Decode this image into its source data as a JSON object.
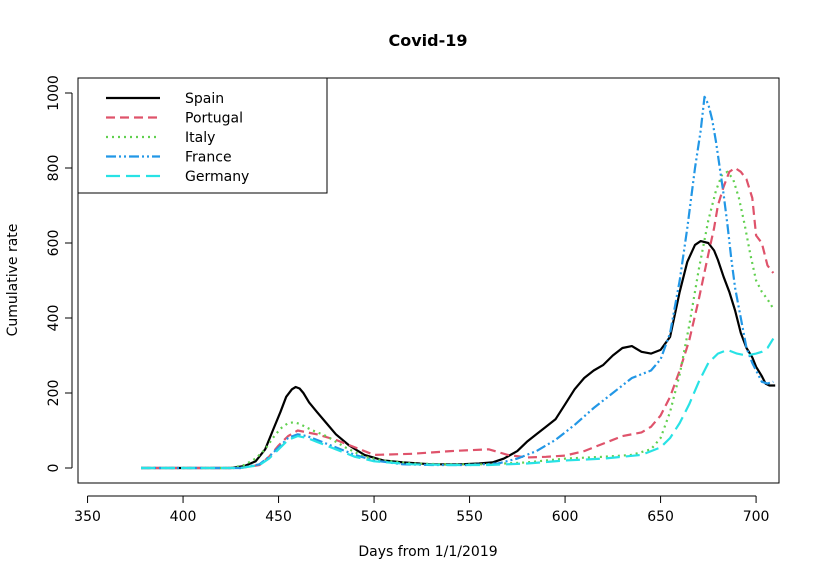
{
  "chart_data": {
    "type": "line",
    "title": "Covid-19",
    "xlabel": "Days from 1/1/2019",
    "ylabel": "Cumulative rate",
    "xlim": [
      345,
      712
    ],
    "ylim": [
      -40,
      1040
    ],
    "xticks": [
      "350",
      "400",
      "450",
      "500",
      "550",
      "600",
      "650",
      "700"
    ],
    "yticks": [
      "0",
      "200",
      "400",
      "600",
      "800",
      "1000"
    ],
    "grid": false,
    "legend_position": "top-left",
    "series": [
      {
        "name": "Spain",
        "color": "#000000",
        "dash": "",
        "width": 2.2,
        "x": [
          378,
          425,
          432,
          438,
          443,
          447,
          451,
          454,
          457,
          459,
          461,
          463,
          466,
          470,
          475,
          480,
          487,
          495,
          505,
          515,
          530,
          545,
          555,
          562,
          568,
          575,
          580,
          585,
          590,
          595,
          600,
          605,
          610,
          615,
          620,
          625,
          630,
          635,
          640,
          645,
          650,
          655,
          660,
          664,
          668,
          671,
          675,
          678,
          680,
          683,
          686,
          689,
          692,
          695,
          698,
          700,
          703,
          705,
          707,
          710
        ],
        "y": [
          0,
          0,
          5,
          18,
          50,
          100,
          150,
          190,
          210,
          216,
          212,
          200,
          175,
          150,
          120,
          90,
          60,
          35,
          20,
          15,
          10,
          10,
          12,
          15,
          25,
          45,
          70,
          90,
          110,
          130,
          170,
          210,
          240,
          260,
          275,
          300,
          320,
          325,
          310,
          305,
          315,
          350,
          470,
          550,
          595,
          605,
          600,
          580,
          555,
          510,
          470,
          420,
          360,
          320,
          295,
          270,
          245,
          225,
          220,
          220
        ]
      },
      {
        "name": "Portugal",
        "color": "#DF536B",
        "dash": "9,5",
        "width": 2.2,
        "x": [
          378,
          430,
          440,
          445,
          450,
          455,
          460,
          465,
          470,
          480,
          490,
          500,
          520,
          540,
          560,
          570,
          580,
          590,
          600,
          610,
          620,
          630,
          640,
          645,
          650,
          655,
          660,
          665,
          670,
          675,
          678,
          680,
          683,
          686,
          689,
          692,
          695,
          698,
          700,
          703,
          706,
          709
        ],
        "y": [
          0,
          0,
          8,
          30,
          60,
          85,
          100,
          95,
          90,
          75,
          55,
          35,
          38,
          45,
          50,
          35,
          28,
          30,
          33,
          45,
          65,
          85,
          95,
          110,
          140,
          190,
          260,
          340,
          450,
          570,
          640,
          700,
          750,
          790,
          800,
          790,
          770,
          720,
          620,
          600,
          540,
          520
        ]
      },
      {
        "name": "Italy",
        "color": "#61D04F",
        "dash": "2,4",
        "width": 2.2,
        "x": [
          378,
          425,
          432,
          438,
          443,
          447,
          451,
          455,
          458,
          461,
          464,
          468,
          475,
          485,
          495,
          505,
          520,
          540,
          560,
          580,
          600,
          620,
          635,
          645,
          650,
          655,
          660,
          665,
          670,
          675,
          679,
          682,
          685,
          688,
          691,
          694,
          697,
          700,
          703,
          706,
          709
        ],
        "y": [
          0,
          0,
          8,
          25,
          50,
          80,
          105,
          120,
          122,
          118,
          110,
          100,
          85,
          55,
          30,
          20,
          12,
          10,
          10,
          15,
          25,
          30,
          35,
          50,
          80,
          150,
          250,
          380,
          530,
          660,
          740,
          780,
          790,
          770,
          720,
          650,
          570,
          500,
          470,
          450,
          425
        ]
      },
      {
        "name": "France",
        "color": "#2297E6",
        "dash": "10,3,2,3,2,3",
        "width": 2.2,
        "x": [
          378,
          430,
          440,
          445,
          450,
          455,
          460,
          465,
          470,
          480,
          490,
          500,
          515,
          530,
          550,
          565,
          575,
          585,
          595,
          605,
          615,
          625,
          635,
          645,
          650,
          655,
          660,
          664,
          668,
          671,
          673,
          675,
          677,
          679,
          681,
          683,
          685,
          687,
          689,
          692,
          695,
          698,
          700,
          703,
          706,
          709
        ],
        "y": [
          0,
          0,
          10,
          30,
          55,
          80,
          90,
          85,
          75,
          55,
          35,
          20,
          10,
          8,
          8,
          12,
          25,
          45,
          75,
          115,
          160,
          200,
          240,
          260,
          290,
          360,
          500,
          640,
          800,
          900,
          990,
          970,
          930,
          870,
          800,
          730,
          650,
          560,
          480,
          400,
          320,
          280,
          260,
          230,
          225,
          230
        ]
      },
      {
        "name": "Germany",
        "color": "#28E2E5",
        "dash": "14,6",
        "width": 2.2,
        "x": [
          378,
          430,
          440,
          445,
          450,
          455,
          460,
          465,
          470,
          480,
          490,
          500,
          520,
          540,
          560,
          580,
          600,
          620,
          640,
          650,
          655,
          660,
          665,
          670,
          675,
          680,
          685,
          690,
          695,
          700,
          703,
          706,
          709
        ],
        "y": [
          0,
          0,
          8,
          25,
          50,
          75,
          85,
          80,
          70,
          50,
          30,
          18,
          10,
          8,
          8,
          12,
          20,
          25,
          35,
          55,
          80,
          120,
          170,
          230,
          280,
          305,
          315,
          305,
          300,
          305,
          310,
          320,
          345
        ]
      }
    ]
  }
}
